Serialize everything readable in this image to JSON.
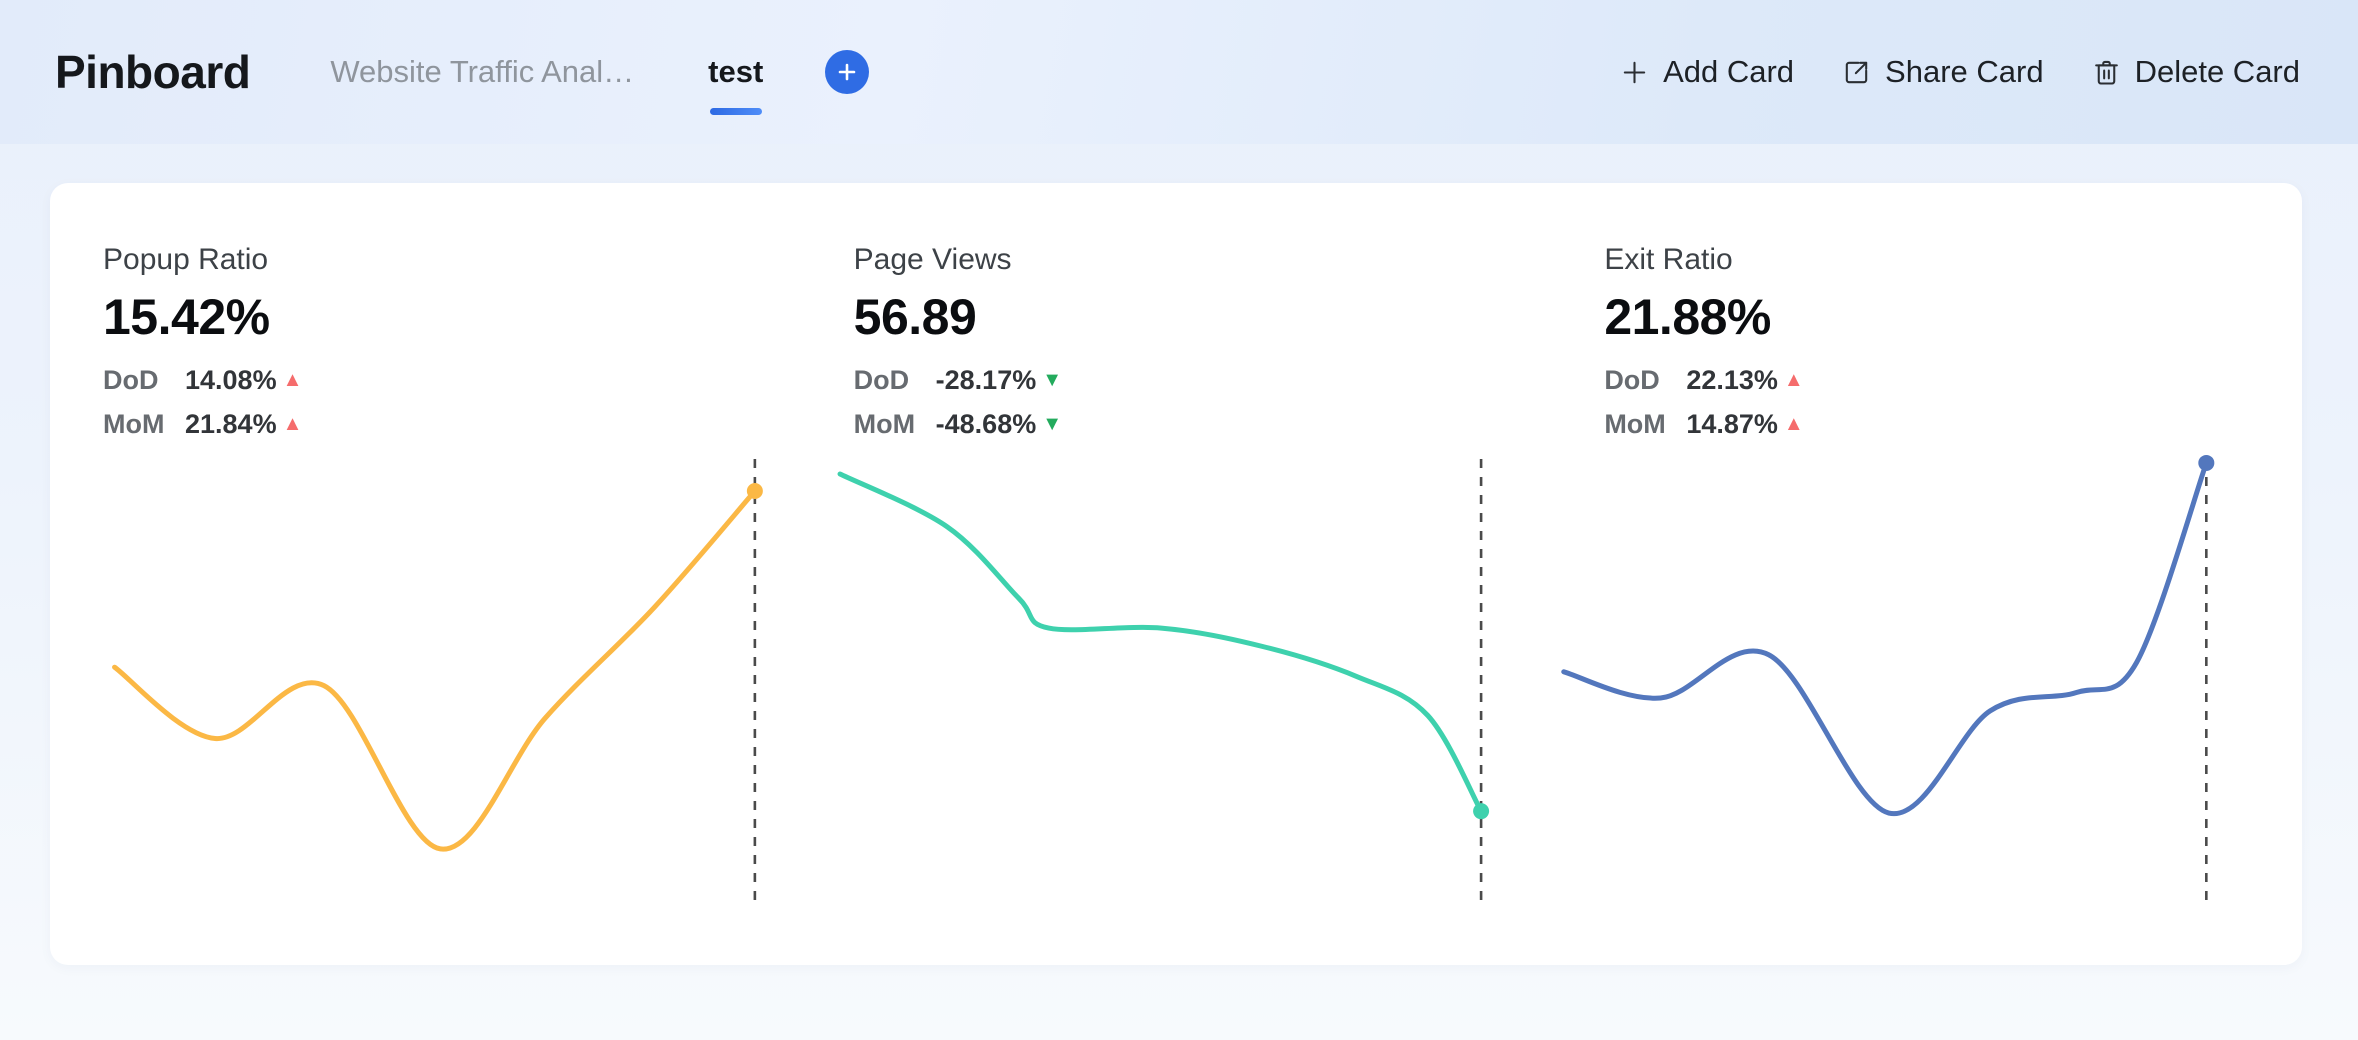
{
  "header": {
    "title": "Pinboard",
    "tabs": [
      {
        "label": "Website Traffic Anal…",
        "active": false
      },
      {
        "label": "test",
        "active": true
      }
    ],
    "add_tab_icon": "plus-icon",
    "actions": [
      {
        "label": "Add Card",
        "icon": "plus-icon"
      },
      {
        "label": "Share Card",
        "icon": "share-icon"
      },
      {
        "label": "Delete Card",
        "icon": "trash-icon"
      }
    ]
  },
  "colors": {
    "accent_blue": "#2f6ce4",
    "tab_underline_start": "#2d6ae3",
    "tab_underline_end": "#4f8df8",
    "trend_up": "#f56c6c",
    "trend_down": "#23ab5d",
    "dashed_marker": "#4a4a4a",
    "card_background": "#ffffff"
  },
  "cards": [
    {
      "title": "Popup Ratio",
      "value": "15.42%",
      "rows": [
        {
          "label": "DoD",
          "value": "14.08%",
          "trend": "up"
        },
        {
          "label": "MoM",
          "value": "21.84%",
          "trend": "up"
        }
      ],
      "chart": {
        "type": "line",
        "color": "#fbb845",
        "grid": false,
        "axes_hidden": true,
        "x_range": [
          0,
          100
        ],
        "y_range": [
          0,
          100
        ],
        "points": [
          [
            8.6,
            53
          ],
          [
            22,
            37.5
          ],
          [
            36.5,
            49
          ],
          [
            52,
            13.5
          ],
          [
            66,
            42
          ],
          [
            80.5,
            66
          ],
          [
            93.9,
            91.3
          ]
        ],
        "marker": {
          "dashed_vertical_line": true,
          "end_dot": true
        }
      }
    },
    {
      "title": "Page Views",
      "value": "56.89",
      "rows": [
        {
          "label": "DoD",
          "value": "-28.17%",
          "trend": "down"
        },
        {
          "label": "MoM",
          "value": "-48.68%",
          "trend": "down"
        }
      ],
      "chart": {
        "type": "line",
        "color": "#3ed1ad",
        "grid": false,
        "axes_hidden": true,
        "x_range": [
          0,
          100
        ],
        "y_range": [
          0,
          100
        ],
        "points": [
          [
            5.2,
            95
          ],
          [
            19.5,
            83.5
          ],
          [
            29,
            68
          ],
          [
            33,
            61.5
          ],
          [
            48,
            61.5
          ],
          [
            61.5,
            57.5
          ],
          [
            74,
            51
          ],
          [
            83.5,
            42.5
          ],
          [
            90.6,
            21.7
          ]
        ],
        "marker": {
          "dashed_vertical_line": true,
          "end_dot": true
        }
      }
    },
    {
      "title": "Exit Ratio",
      "value": "21.88%",
      "rows": [
        {
          "label": "DoD",
          "value": "22.13%",
          "trend": "up"
        },
        {
          "label": "MoM",
          "value": "14.87%",
          "trend": "up"
        }
      ],
      "chart": {
        "type": "line",
        "color": "#5377bd",
        "grid": false,
        "axes_hidden": true,
        "x_range": [
          0,
          100
        ],
        "y_range": [
          0,
          100
        ],
        "points": [
          [
            1.7,
            52
          ],
          [
            14.6,
            46.3
          ],
          [
            29,
            55.7
          ],
          [
            45,
            21.3
          ],
          [
            58.5,
            43.5
          ],
          [
            70,
            47.5
          ],
          [
            78,
            54
          ],
          [
            87.3,
            97.4
          ]
        ],
        "marker": {
          "dashed_vertical_line": true,
          "end_dot": true
        }
      }
    }
  ]
}
